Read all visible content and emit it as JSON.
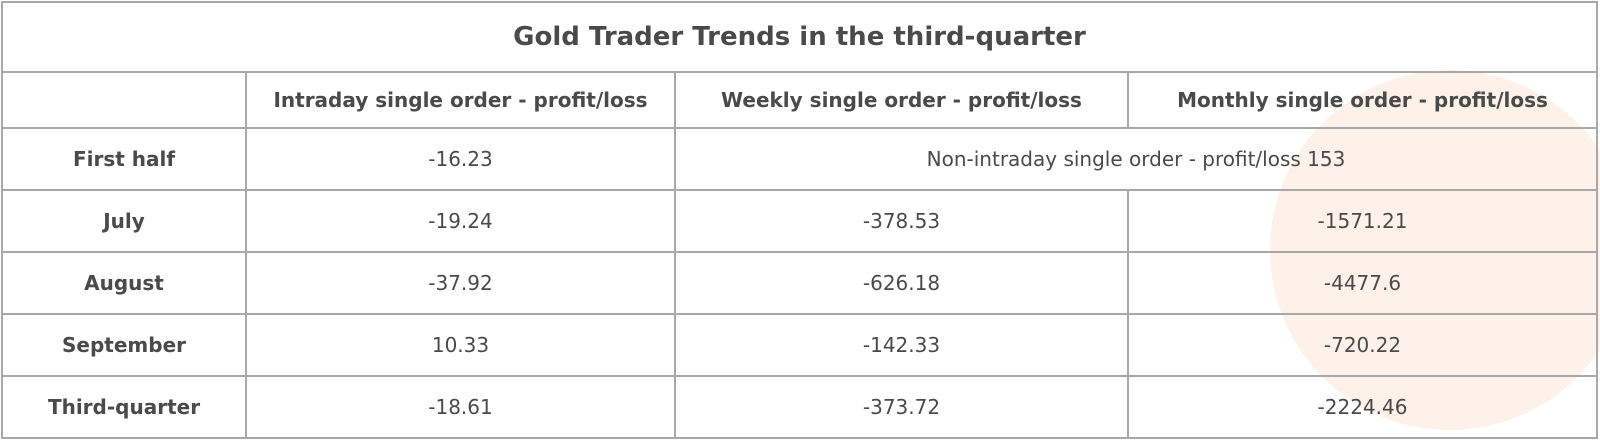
{
  "table": {
    "title": "Gold Trader Trends in the third-quarter",
    "columns": [
      "Intraday single order - profit/loss",
      "Weekly single order - profit/loss",
      "Monthly single order - profit/loss"
    ],
    "rows": [
      {
        "label": "First half",
        "cells": [
          "-16.23"
        ],
        "merged": "Non-intraday single order - profit/loss 153"
      },
      {
        "label": "July",
        "cells": [
          "-19.24",
          "-378.53",
          "-1571.21"
        ]
      },
      {
        "label": "August",
        "cells": [
          "-37.92",
          "-626.18",
          "-4477.6"
        ]
      },
      {
        "label": "September",
        "cells": [
          "10.33",
          "-142.33",
          "-720.22"
        ]
      },
      {
        "label": "Third-quarter",
        "cells": [
          "-18.61",
          "-373.72",
          "-2224.46"
        ]
      }
    ]
  }
}
